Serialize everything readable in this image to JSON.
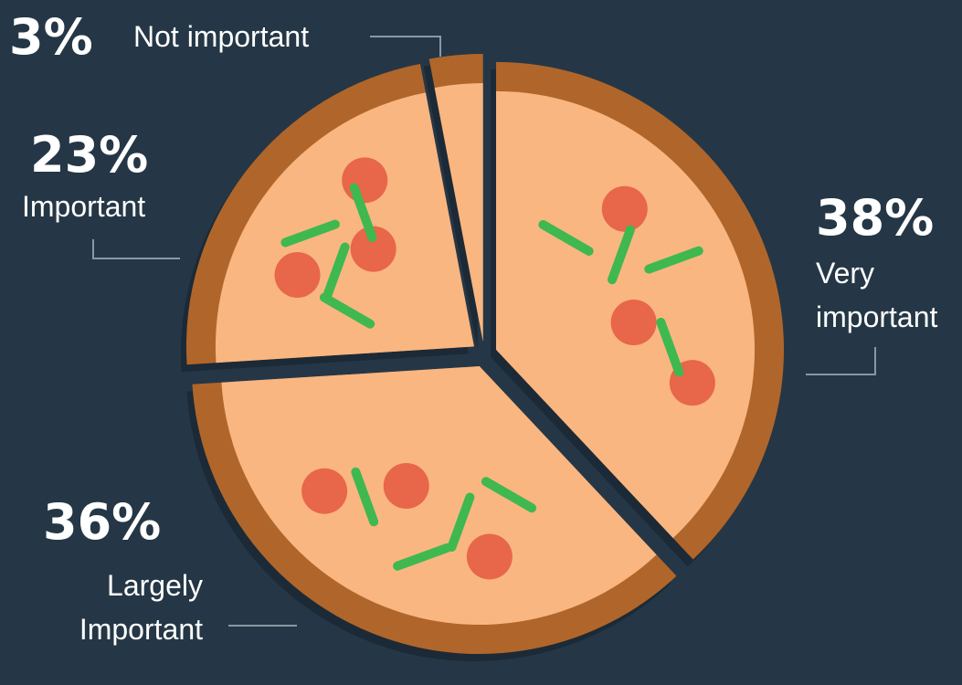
{
  "chart_data": {
    "type": "pie",
    "categories": [
      "Very important",
      "Largely Important",
      "Important",
      "Not important"
    ],
    "values": [
      38,
      36,
      23,
      3
    ],
    "value_labels": [
      "38%",
      "36%",
      "23%",
      "3%"
    ],
    "color": "#b0662a"
  }
}
